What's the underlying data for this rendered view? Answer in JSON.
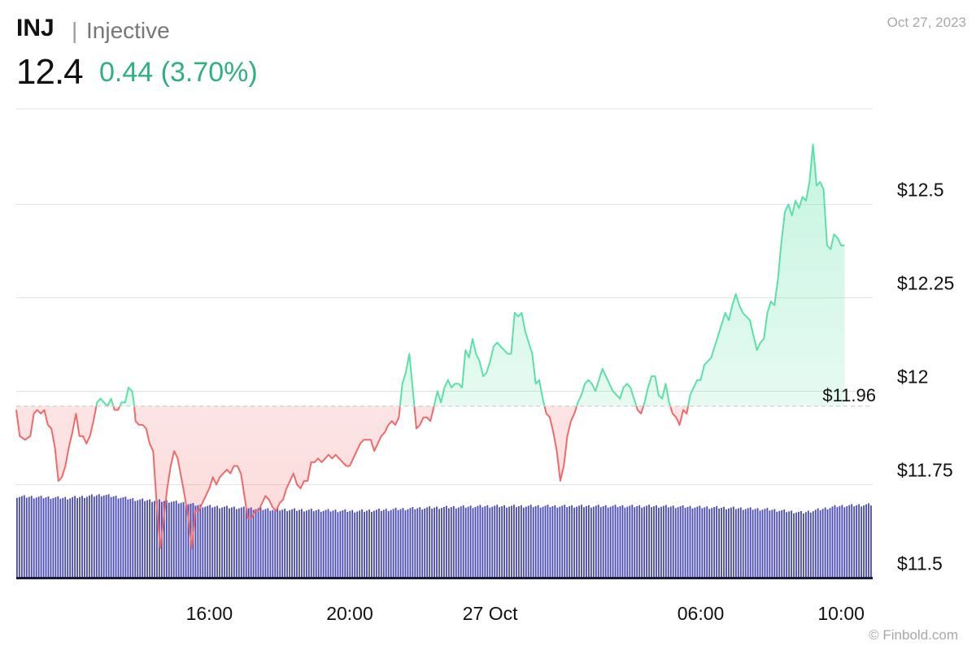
{
  "header": {
    "symbol": "INJ",
    "separator": "|",
    "name": "Injective",
    "price": "12.4",
    "change": "0.44 (3.70%)",
    "date": "Oct 27, 2023"
  },
  "credit": "© Finbold.com",
  "colors": {
    "up": "#5be0a8",
    "down": "#ef6a6a",
    "volume": "#4a4cb4",
    "grid": "#e3e3e3",
    "baseline": "#cfcfcf"
  },
  "chart_data": {
    "type": "line",
    "baseline": {
      "value": 11.96,
      "label": "$11.96"
    },
    "ylim": [
      11.5,
      12.75
    ],
    "yticks": [
      {
        "value": 11.5,
        "label": "$11.5"
      },
      {
        "value": 11.75,
        "label": "$11.75"
      },
      {
        "value": 12,
        "label": "$12"
      },
      {
        "value": 12.25,
        "label": "$12.25"
      },
      {
        "value": 12.5,
        "label": "$12.5"
      }
    ],
    "xlim": [
      10.5,
      34.9
    ],
    "xticks": [
      {
        "value": 16,
        "label": "16:00"
      },
      {
        "value": 20,
        "label": "20:00"
      },
      {
        "value": 24,
        "label": "27 Oct"
      },
      {
        "value": 30,
        "label": "06:00"
      },
      {
        "value": 34,
        "label": "10:00"
      }
    ],
    "series": [
      {
        "values": [
          [
            10.5,
            11.95
          ],
          [
            10.6,
            11.88
          ],
          [
            10.75,
            11.87
          ],
          [
            10.9,
            11.88
          ],
          [
            11.0,
            11.94
          ],
          [
            11.1,
            11.95
          ],
          [
            11.2,
            11.94
          ],
          [
            11.3,
            11.95
          ],
          [
            11.4,
            11.91
          ],
          [
            11.5,
            11.9
          ],
          [
            11.6,
            11.85
          ],
          [
            11.7,
            11.76
          ],
          [
            11.8,
            11.77
          ],
          [
            11.9,
            11.8
          ],
          [
            12.0,
            11.85
          ],
          [
            12.1,
            11.89
          ],
          [
            12.2,
            11.94
          ],
          [
            12.3,
            11.88
          ],
          [
            12.4,
            11.88
          ],
          [
            12.5,
            11.86
          ],
          [
            12.6,
            11.88
          ],
          [
            12.7,
            11.92
          ],
          [
            12.8,
            11.97
          ],
          [
            12.9,
            11.98
          ],
          [
            13.0,
            11.97
          ],
          [
            13.1,
            11.96
          ],
          [
            13.2,
            11.98
          ],
          [
            13.3,
            11.95
          ],
          [
            13.4,
            11.95
          ],
          [
            13.5,
            11.97
          ],
          [
            13.6,
            11.97
          ],
          [
            13.7,
            12.01
          ],
          [
            13.8,
            12.0
          ],
          [
            13.85,
            11.97
          ],
          [
            13.9,
            11.92
          ],
          [
            14.0,
            11.91
          ],
          [
            14.1,
            11.91
          ],
          [
            14.2,
            11.9
          ],
          [
            14.3,
            11.86
          ],
          [
            14.4,
            11.84
          ],
          [
            14.5,
            11.7
          ],
          [
            14.6,
            11.58
          ],
          [
            14.7,
            11.66
          ],
          [
            14.8,
            11.74
          ],
          [
            14.9,
            11.8
          ],
          [
            15.0,
            11.84
          ],
          [
            15.1,
            11.82
          ],
          [
            15.2,
            11.77
          ],
          [
            15.3,
            11.72
          ],
          [
            15.4,
            11.66
          ],
          [
            15.5,
            11.58
          ],
          [
            15.6,
            11.68
          ],
          [
            15.7,
            11.68
          ],
          [
            15.8,
            11.7
          ],
          [
            15.9,
            11.72
          ],
          [
            16.0,
            11.74
          ],
          [
            16.1,
            11.77
          ],
          [
            16.2,
            11.75
          ],
          [
            16.3,
            11.77
          ],
          [
            16.4,
            11.78
          ],
          [
            16.5,
            11.79
          ],
          [
            16.6,
            11.78
          ],
          [
            16.7,
            11.8
          ],
          [
            16.8,
            11.8
          ],
          [
            16.9,
            11.78
          ],
          [
            17.0,
            11.72
          ],
          [
            17.1,
            11.66
          ],
          [
            17.2,
            11.66
          ],
          [
            17.3,
            11.68
          ],
          [
            17.4,
            11.68
          ],
          [
            17.5,
            11.7
          ],
          [
            17.6,
            11.72
          ],
          [
            17.7,
            11.71
          ],
          [
            17.8,
            11.69
          ],
          [
            17.9,
            11.68
          ],
          [
            18.0,
            11.7
          ],
          [
            18.1,
            11.71
          ],
          [
            18.2,
            11.74
          ],
          [
            18.3,
            11.76
          ],
          [
            18.4,
            11.78
          ],
          [
            18.5,
            11.75
          ],
          [
            18.6,
            11.74
          ],
          [
            18.7,
            11.76
          ],
          [
            18.8,
            11.76
          ],
          [
            18.9,
            11.81
          ],
          [
            19.0,
            11.81
          ],
          [
            19.1,
            11.82
          ],
          [
            19.2,
            11.81
          ],
          [
            19.3,
            11.82
          ],
          [
            19.4,
            11.83
          ],
          [
            19.5,
            11.82
          ],
          [
            19.6,
            11.83
          ],
          [
            19.7,
            11.82
          ],
          [
            19.8,
            11.81
          ],
          [
            19.9,
            11.8
          ],
          [
            20.0,
            11.8
          ],
          [
            20.1,
            11.82
          ],
          [
            20.2,
            11.84
          ],
          [
            20.3,
            11.86
          ],
          [
            20.4,
            11.87
          ],
          [
            20.5,
            11.87
          ],
          [
            20.6,
            11.87
          ],
          [
            20.7,
            11.84
          ],
          [
            20.8,
            11.86
          ],
          [
            20.9,
            11.88
          ],
          [
            21.0,
            11.89
          ],
          [
            21.1,
            11.91
          ],
          [
            21.2,
            11.92
          ],
          [
            21.3,
            11.91
          ],
          [
            21.4,
            11.93
          ],
          [
            21.5,
            12.02
          ],
          [
            21.6,
            12.05
          ],
          [
            21.7,
            12.1
          ],
          [
            21.8,
            12.0
          ],
          [
            21.9,
            11.9
          ],
          [
            22.0,
            11.91
          ],
          [
            22.1,
            11.93
          ],
          [
            22.2,
            11.93
          ],
          [
            22.3,
            11.92
          ],
          [
            22.4,
            11.96
          ],
          [
            22.5,
            12.0
          ],
          [
            22.6,
            11.97
          ],
          [
            22.7,
            12.01
          ],
          [
            22.8,
            12.03
          ],
          [
            22.9,
            12.01
          ],
          [
            23.0,
            12.02
          ],
          [
            23.1,
            12.02
          ],
          [
            23.2,
            12.01
          ],
          [
            23.3,
            12.11
          ],
          [
            23.4,
            12.09
          ],
          [
            23.5,
            12.14
          ],
          [
            23.6,
            12.1
          ],
          [
            23.7,
            12.08
          ],
          [
            23.8,
            12.04
          ],
          [
            23.9,
            12.05
          ],
          [
            24.0,
            12.08
          ],
          [
            24.1,
            12.12
          ],
          [
            24.2,
            12.13
          ],
          [
            24.3,
            12.12
          ],
          [
            24.4,
            12.11
          ],
          [
            24.5,
            12.1
          ],
          [
            24.6,
            12.1
          ],
          [
            24.7,
            12.21
          ],
          [
            24.8,
            12.2
          ],
          [
            24.9,
            12.21
          ],
          [
            25.0,
            12.16
          ],
          [
            25.1,
            12.13
          ],
          [
            25.2,
            12.1
          ],
          [
            25.3,
            12.02
          ],
          [
            25.4,
            12.03
          ],
          [
            25.5,
            11.98
          ],
          [
            25.6,
            11.94
          ],
          [
            25.7,
            11.93
          ],
          [
            25.8,
            11.89
          ],
          [
            25.9,
            11.84
          ],
          [
            26.0,
            11.76
          ],
          [
            26.1,
            11.8
          ],
          [
            26.2,
            11.88
          ],
          [
            26.3,
            11.92
          ],
          [
            26.4,
            11.94
          ],
          [
            26.5,
            11.97
          ],
          [
            26.6,
            11.99
          ],
          [
            26.7,
            12.02
          ],
          [
            26.8,
            12.03
          ],
          [
            26.9,
            12.02
          ],
          [
            27.0,
            12.0
          ],
          [
            27.1,
            12.03
          ],
          [
            27.2,
            12.06
          ],
          [
            27.3,
            12.04
          ],
          [
            27.4,
            12.02
          ],
          [
            27.5,
            12.0
          ],
          [
            27.6,
            11.99
          ],
          [
            27.7,
            11.98
          ],
          [
            27.8,
            12.01
          ],
          [
            27.9,
            12.02
          ],
          [
            28.0,
            12.01
          ],
          [
            28.1,
            11.98
          ],
          [
            28.2,
            11.95
          ],
          [
            28.3,
            11.94
          ],
          [
            28.4,
            11.97
          ],
          [
            28.5,
            12.01
          ],
          [
            28.6,
            12.04
          ],
          [
            28.7,
            12.04
          ],
          [
            28.8,
            11.99
          ],
          [
            28.9,
            11.98
          ],
          [
            29.0,
            12.02
          ],
          [
            29.1,
            11.97
          ],
          [
            29.2,
            11.94
          ],
          [
            29.3,
            11.93
          ],
          [
            29.4,
            11.91
          ],
          [
            29.5,
            11.95
          ],
          [
            29.6,
            11.94
          ],
          [
            29.7,
            11.99
          ],
          [
            29.8,
            12.01
          ],
          [
            29.9,
            12.03
          ],
          [
            30.0,
            12.03
          ],
          [
            30.1,
            12.07
          ],
          [
            30.2,
            12.08
          ],
          [
            30.3,
            12.09
          ],
          [
            30.4,
            12.12
          ],
          [
            30.5,
            12.15
          ],
          [
            30.6,
            12.18
          ],
          [
            30.7,
            12.21
          ],
          [
            30.8,
            12.19
          ],
          [
            30.9,
            12.23
          ],
          [
            31.0,
            12.26
          ],
          [
            31.1,
            12.23
          ],
          [
            31.2,
            12.21
          ],
          [
            31.3,
            12.2
          ],
          [
            31.4,
            12.19
          ],
          [
            31.5,
            12.15
          ],
          [
            31.6,
            12.11
          ],
          [
            31.7,
            12.13
          ],
          [
            31.8,
            12.14
          ],
          [
            31.9,
            12.21
          ],
          [
            32.0,
            12.24
          ],
          [
            32.1,
            12.23
          ],
          [
            32.2,
            12.3
          ],
          [
            32.3,
            12.4
          ],
          [
            32.4,
            12.48
          ],
          [
            32.5,
            12.5
          ],
          [
            32.6,
            12.47
          ],
          [
            32.7,
            12.51
          ],
          [
            32.8,
            12.49
          ],
          [
            32.9,
            12.52
          ],
          [
            33.0,
            12.51
          ],
          [
            33.1,
            12.56
          ],
          [
            33.2,
            12.66
          ],
          [
            33.3,
            12.55
          ],
          [
            33.4,
            12.56
          ],
          [
            33.5,
            12.54
          ],
          [
            33.6,
            12.39
          ],
          [
            33.7,
            12.38
          ],
          [
            33.8,
            12.42
          ],
          [
            33.9,
            12.41
          ],
          [
            34.0,
            12.39
          ],
          [
            34.1,
            12.39
          ]
        ]
      }
    ],
    "volume": {
      "bars": 355,
      "levels": [
        [
          0,
          0.5
        ],
        [
          0.06,
          0.49
        ],
        [
          0.1,
          0.51
        ],
        [
          0.14,
          0.48
        ],
        [
          0.18,
          0.47
        ],
        [
          0.22,
          0.44
        ],
        [
          0.3,
          0.42
        ],
        [
          0.4,
          0.41
        ],
        [
          0.48,
          0.43
        ],
        [
          0.55,
          0.44
        ],
        [
          0.65,
          0.44
        ],
        [
          0.75,
          0.44
        ],
        [
          0.83,
          0.43
        ],
        [
          0.88,
          0.42
        ],
        [
          0.92,
          0.4
        ],
        [
          0.96,
          0.44
        ],
        [
          1.0,
          0.45
        ]
      ]
    }
  }
}
